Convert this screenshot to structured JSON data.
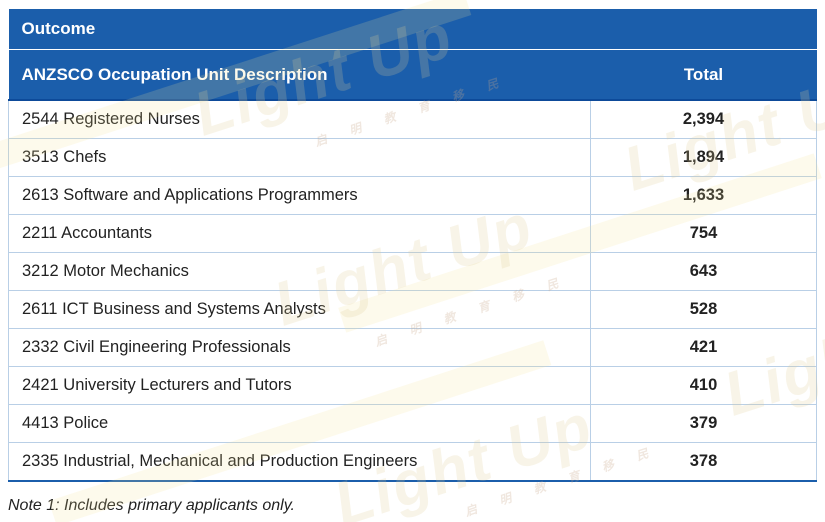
{
  "table": {
    "caption": "Outcome",
    "col_description": "ANZSCO Occupation Unit Description",
    "col_total": "Total",
    "rows": [
      {
        "description": "2544 Registered Nurses",
        "total": "2,394"
      },
      {
        "description": "3513 Chefs",
        "total": "1,894"
      },
      {
        "description": "2613 Software and Applications Programmers",
        "total": "1,633"
      },
      {
        "description": "2211 Accountants",
        "total": "754"
      },
      {
        "description": "3212 Motor Mechanics",
        "total": "643"
      },
      {
        "description": "2611 ICT Business and Systems Analysts",
        "total": "528"
      },
      {
        "description": "2332 Civil Engineering Professionals",
        "total": "421"
      },
      {
        "description": "2421 University Lecturers and Tutors",
        "total": "410"
      },
      {
        "description": "4413 Police",
        "total": "379"
      },
      {
        "description": "2335 Industrial, Mechanical and Production Engineers",
        "total": "378"
      }
    ]
  },
  "note": "Note 1: Includes primary applicants only.",
  "watermark": {
    "text": "Light Up",
    "subtext": "启明教育移民",
    "color": "#e1cd96"
  },
  "colors": {
    "header_blue": "#1b5eab",
    "grid_line": "#b9cfe6"
  }
}
